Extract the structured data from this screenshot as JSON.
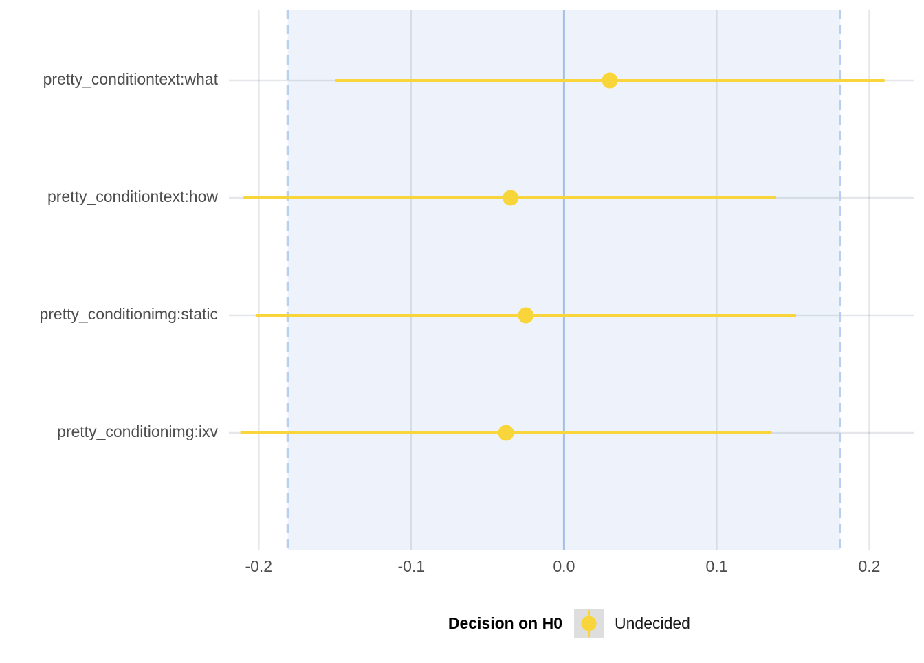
{
  "chart_data": {
    "type": "scatter",
    "subtype": "forest-plot-with-intervals",
    "title": "",
    "xlabel": "",
    "ylabel": "",
    "xlim": [
      -0.2195,
      0.2295
    ],
    "x_ticks": [
      -0.2,
      -0.1,
      0.0,
      0.1,
      0.2
    ],
    "x_tick_labels": [
      "-0.2",
      "-0.1",
      "0.0",
      "0.1",
      "0.2"
    ],
    "categories": [
      "pretty_conditiontext:what",
      "pretty_conditiontext:how",
      "pretty_conditionimg:static",
      "pretty_conditionimg:ixv"
    ],
    "series": [
      {
        "name": "Undecided",
        "color": "#F8D53A",
        "estimates": [
          0.03,
          -0.035,
          -0.025,
          -0.038
        ],
        "lower": [
          -0.15,
          -0.21,
          -0.202,
          -0.212
        ],
        "upper": [
          0.21,
          0.139,
          0.152,
          0.136
        ]
      }
    ],
    "rope": {
      "lower": -0.181,
      "upper": 0.181,
      "fill_color": "#EEF3FB",
      "boundary_color": "#B9CFEF"
    },
    "reference_line": {
      "x": 0.0,
      "color": "#A4BFE6"
    },
    "grid": true,
    "legend": {
      "position": "bottom",
      "title": "Decision on H0",
      "entries": [
        "Undecided"
      ]
    }
  }
}
